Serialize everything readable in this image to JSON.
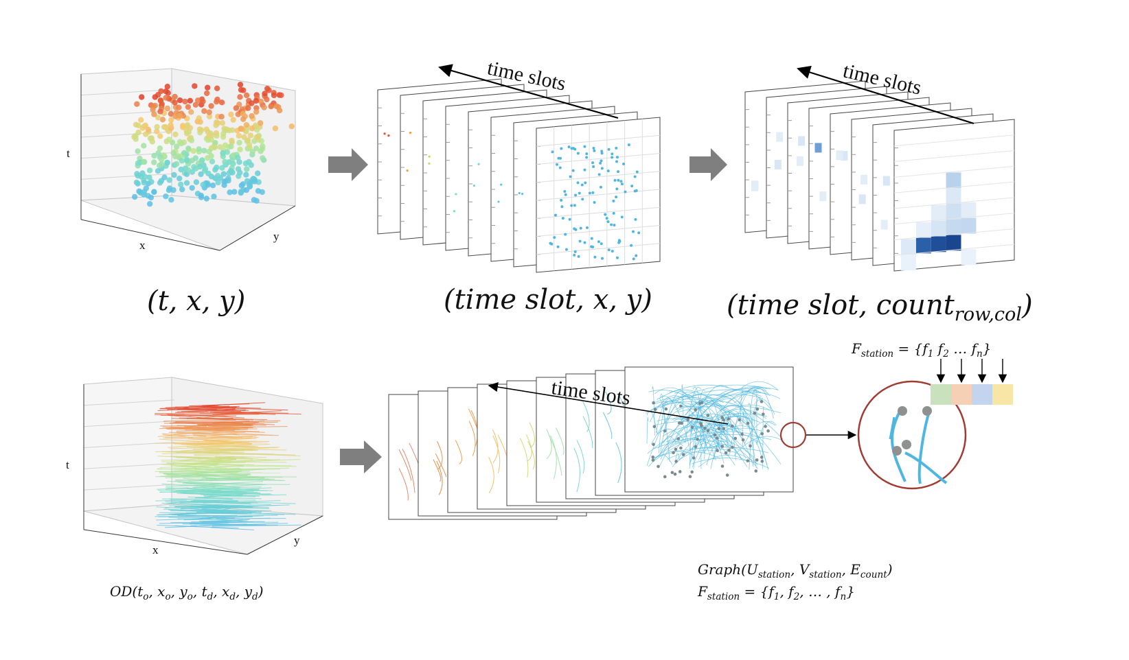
{
  "top_row": {
    "panel1": {
      "formula_main": "(t, x, y)",
      "axis_t": "t",
      "axis_x": "x",
      "axis_y": "y"
    },
    "panel2": {
      "formula_main": "(time slot, x, y)",
      "time_label": "time slots"
    },
    "panel3": {
      "formula_prefix": "(time slot, count",
      "formula_sub": "row,col",
      "formula_suffix": ")",
      "time_label": "time slots"
    }
  },
  "bottom_row": {
    "panel1": {
      "axis_t": "t",
      "axis_x": "x",
      "axis_y": "y",
      "formula": {
        "p0": "OD(t",
        "s0": "o",
        "p1": ", x",
        "s1": "o",
        "p2": ", y",
        "s2": "o",
        "p3": ", t",
        "s3": "d",
        "p4": ", x",
        "s4": "d",
        "p5": ", y",
        "s5": "d",
        "p6": ")"
      }
    },
    "panel2": {
      "time_label": "time slots",
      "graph_formula": {
        "p0": "Graph(U",
        "s0": "station",
        "p1": ", V",
        "s1": "station",
        "p2": ", E",
        "s2": "count",
        "p3": ")"
      },
      "feature_formula": {
        "p0": "F",
        "s0": "station",
        "p1": " = {f",
        "s1": "1",
        "p2": ", f",
        "s2": "2",
        "p3": ", … , f",
        "s3": "n",
        "p4": "}"
      }
    },
    "zoom": {
      "feature_formula": {
        "p0": "F",
        "s0": "station",
        "p1": " = {f",
        "s1": "1",
        "p2": " f",
        "s2": "2",
        "p3": " … f",
        "s3": "n",
        "p4": "}"
      },
      "feature_colors": [
        "#c9e1bd",
        "#f6d0b5",
        "#c3d5ee",
        "#f7e6a6"
      ]
    }
  },
  "colors": {
    "arrow_gray": "#7f7f7f",
    "accent_blue": "#4fb6e0",
    "zoom_circle": "#a23a34"
  }
}
